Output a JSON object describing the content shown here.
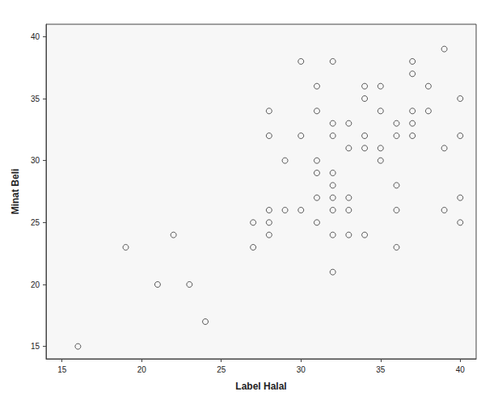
{
  "chart_data": {
    "type": "scatter",
    "x_label": "Label Halal",
    "y_label": "Minat Beli",
    "x": [
      16,
      19,
      21,
      22,
      23,
      24,
      27,
      27,
      28,
      28,
      28,
      28,
      28,
      29,
      29,
      30,
      30,
      30,
      31,
      31,
      31,
      31,
      31,
      31,
      32,
      32,
      32,
      32,
      32,
      32,
      32,
      32,
      32,
      33,
      33,
      33,
      33,
      33,
      34,
      34,
      34,
      34,
      34,
      35,
      35,
      35,
      35,
      36,
      36,
      36,
      36,
      36,
      37,
      37,
      37,
      37,
      37,
      38,
      38,
      39,
      39,
      39,
      40,
      40,
      40,
      40
    ],
    "values": [
      15,
      23,
      20,
      24,
      20,
      17,
      25,
      23,
      34,
      32,
      26,
      25,
      24,
      30,
      26,
      38,
      32,
      26,
      36,
      34,
      30,
      29,
      27,
      25,
      38,
      33,
      32,
      29,
      28,
      27,
      26,
      24,
      21,
      33,
      31,
      27,
      26,
      24,
      36,
      35,
      32,
      31,
      24,
      36,
      34,
      31,
      30,
      33,
      32,
      28,
      26,
      23,
      38,
      37,
      34,
      33,
      32,
      36,
      34,
      39,
      31,
      26,
      35,
      32,
      27,
      25
    ],
    "color": "#333333",
    "marker": "open_circle",
    "xlim": [
      14,
      41
    ],
    "xticks": [
      15,
      20,
      25,
      30,
      35,
      40
    ],
    "ylim": [
      14,
      41
    ],
    "yticks": [
      15,
      20,
      25,
      30,
      35,
      40
    ],
    "grid": false
  }
}
